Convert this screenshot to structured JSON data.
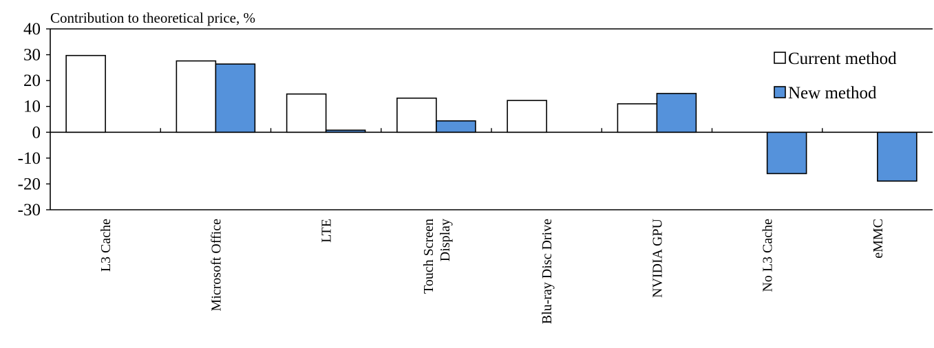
{
  "chart_data": {
    "type": "bar",
    "title": "Contribution to theoretical price, %",
    "xlabel": "",
    "ylabel": "",
    "categories": [
      [
        "L3 Cache"
      ],
      [
        "Microsoft Office"
      ],
      [
        "LTE"
      ],
      [
        "Touch Screen",
        "Display"
      ],
      [
        "Blu-ray Disc Drive"
      ],
      [
        "NVIDIA GPU"
      ],
      [
        "No L3 Cache"
      ],
      [
        "eMMC"
      ]
    ],
    "series": [
      {
        "name": "Current method",
        "color": "#ffffff",
        "values": [
          29.7,
          27.6,
          14.8,
          13.2,
          12.3,
          11.0,
          null,
          null
        ]
      },
      {
        "name": "New method",
        "color": "#5592db",
        "values": [
          null,
          26.4,
          0.8,
          4.4,
          null,
          15.0,
          -16.0,
          -18.9
        ]
      }
    ],
    "ylim": [
      -30,
      40
    ],
    "yticks": [
      40,
      30,
      20,
      10,
      0,
      -10,
      -20,
      -30
    ],
    "grid": false,
    "legend_position": "top-right"
  }
}
